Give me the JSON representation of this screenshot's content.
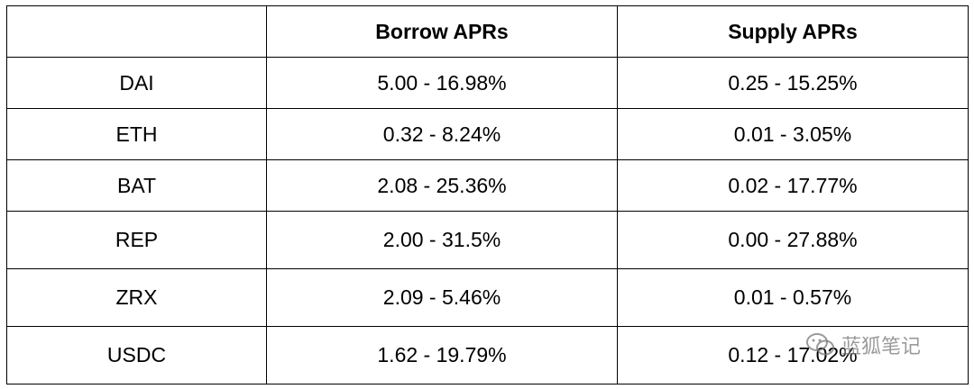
{
  "table": {
    "headers": [
      "",
      "Borrow APRs",
      "Supply APRs"
    ],
    "rows": [
      {
        "asset": "DAI",
        "borrow": "5.00 - 16.98%",
        "supply": "0.25 - 15.25%"
      },
      {
        "asset": "ETH",
        "borrow": "0.32 - 8.24%",
        "supply": "0.01 - 3.05%"
      },
      {
        "asset": "BAT",
        "borrow": "2.08 - 25.36%",
        "supply": "0.02 - 17.77%"
      },
      {
        "asset": "REP",
        "borrow": "2.00 - 31.5%",
        "supply": "0.00 - 27.88%"
      },
      {
        "asset": "ZRX",
        "borrow": "2.09 - 5.46%",
        "supply": "0.01 - 0.57%"
      },
      {
        "asset": "USDC",
        "borrow": "1.62 - 19.79%",
        "supply": "0.12 - 17.02%"
      }
    ]
  },
  "watermark": {
    "text": "蓝狐笔记",
    "icon": "wechat-icon"
  },
  "colors": {
    "border": "#000000",
    "text": "#000000",
    "watermark": "#8a8a8a"
  }
}
